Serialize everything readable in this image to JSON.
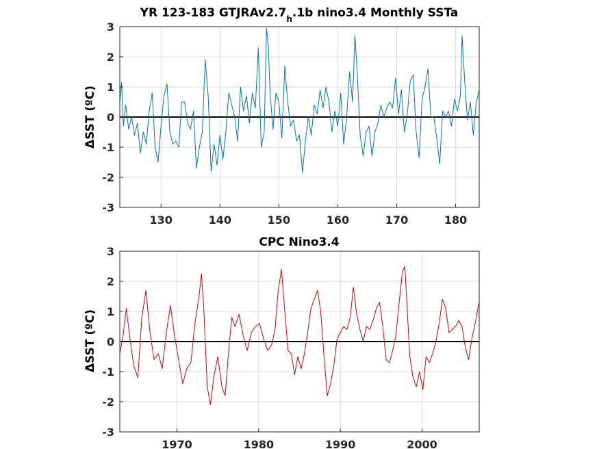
{
  "chart_data": [
    {
      "type": "line",
      "title": "YR 123-183 GTJRAv2.7",
      "title_sub": "h",
      "title_rest": ".1b nino3.4 Monthly SSTa",
      "ylabel": "ΔSST (ºC)",
      "xlim": [
        123,
        184
      ],
      "ylim": [
        -3,
        3
      ],
      "xticks": [
        130,
        140,
        150,
        160,
        170,
        180
      ],
      "yticks": [
        -3,
        -2,
        -1,
        0,
        1,
        2,
        3
      ],
      "grid": true,
      "zero_line": true,
      "color": "#0072bd",
      "series": [
        {
          "x": [
            123.0,
            123.3,
            123.6,
            124.0,
            124.5,
            125.0,
            125.5,
            126.0,
            126.5,
            127.0,
            127.5,
            128.0,
            128.5,
            129.0,
            129.5,
            130.0,
            130.5,
            131.0,
            131.5,
            132.0,
            132.5,
            133.0,
            133.5,
            134.0,
            134.5,
            135.0,
            135.5,
            136.0,
            136.5,
            137.0,
            137.5,
            138.0,
            138.5,
            139.0,
            139.5,
            140.0,
            140.5,
            141.0,
            141.5,
            142.0,
            142.5,
            143.0,
            143.5,
            144.0,
            144.5,
            145.0,
            145.5,
            146.0,
            146.5,
            147.0,
            147.5,
            147.9,
            148.2,
            148.5,
            149.0,
            149.5,
            150.0,
            150.5,
            151.0,
            151.5,
            152.0,
            152.5,
            153.0,
            153.5,
            154.0,
            154.5,
            155.0,
            155.5,
            156.0,
            156.5,
            157.0,
            157.5,
            158.0,
            158.5,
            159.0,
            159.5,
            160.0,
            160.5,
            161.0,
            161.5,
            162.0,
            162.5,
            162.9,
            163.3,
            163.8,
            164.3,
            164.8,
            165.3,
            165.8,
            166.3,
            166.8,
            167.3,
            167.8,
            168.3,
            168.8,
            169.3,
            169.8,
            170.3,
            170.8,
            171.3,
            171.8,
            172.3,
            172.8,
            173.3,
            173.8,
            174.3,
            174.8,
            175.3,
            175.8,
            176.3,
            176.8,
            177.3,
            177.8,
            178.3,
            178.8,
            179.3,
            179.8,
            180.3,
            180.8,
            181.1,
            181.5,
            182.0,
            182.5,
            183.0,
            183.5,
            184.0
          ],
          "values": [
            0.5,
            1.15,
            -0.3,
            0.4,
            -0.4,
            0.0,
            -0.6,
            -0.2,
            -1.2,
            -0.5,
            -0.9,
            0.2,
            0.8,
            -1.0,
            -1.5,
            -0.3,
            0.7,
            1.1,
            -0.5,
            -0.9,
            -0.8,
            -1.0,
            0.5,
            0.5,
            -0.2,
            -0.4,
            0.2,
            -1.7,
            -1.0,
            -0.5,
            1.9,
            0.7,
            -1.8,
            -0.9,
            -1.6,
            -0.6,
            -1.4,
            -0.5,
            0.8,
            0.4,
            0.0,
            -0.8,
            1.0,
            0.2,
            0.7,
            -0.2,
            0.8,
            0.3,
            2.3,
            -1.0,
            -0.5,
            2.95,
            2.4,
            0.8,
            -0.4,
            0.8,
            0.5,
            -0.7,
            1.7,
            0.5,
            -0.3,
            -0.1,
            -0.8,
            -0.6,
            -1.85,
            -0.8,
            0.0,
            -0.6,
            0.4,
            0.1,
            0.9,
            0.3,
            1.0,
            0.5,
            -0.5,
            0.2,
            -0.3,
            0.8,
            -0.9,
            0.0,
            1.5,
            0.5,
            2.7,
            1.5,
            -0.6,
            -1.3,
            -0.5,
            -0.3,
            -1.3,
            -0.5,
            -0.2,
            0.4,
            0.0,
            0.3,
            0.5,
            0.3,
            1.3,
            0.1,
            0.9,
            -0.5,
            0.1,
            1.2,
            1.4,
            -0.5,
            -1.35,
            0.6,
            1.0,
            1.6,
            0.0,
            0.0,
            -0.7,
            -1.55,
            0.2,
            0.0,
            0.2,
            -0.3,
            0.6,
            0.2,
            0.7,
            2.7,
            1.3,
            -0.1,
            0.5,
            -0.6,
            0.5,
            0.9
          ]
        }
      ]
    },
    {
      "type": "line",
      "title": "CPC Nino3.4",
      "ylabel": "ΔSST (ºC)",
      "xlim": [
        1963,
        2007
      ],
      "ylim": [
        -3,
        3
      ],
      "xticks": [
        1970,
        1980,
        1990,
        2000
      ],
      "yticks": [
        -3,
        -2,
        -1,
        0,
        1,
        2,
        3
      ],
      "grid": true,
      "zero_line": true,
      "color": "#d40000",
      "series": [
        {
          "x": [
            1963.0,
            1963.4,
            1963.8,
            1964.2,
            1964.7,
            1965.2,
            1965.7,
            1966.2,
            1966.7,
            1967.2,
            1967.7,
            1968.2,
            1968.7,
            1969.2,
            1969.7,
            1970.2,
            1970.7,
            1971.2,
            1971.7,
            1972.2,
            1972.7,
            1973.0,
            1973.3,
            1973.7,
            1974.1,
            1974.5,
            1975.0,
            1975.5,
            1975.9,
            1976.3,
            1976.7,
            1977.1,
            1977.6,
            1978.1,
            1978.6,
            1979.1,
            1979.6,
            1980.1,
            1980.6,
            1981.1,
            1981.6,
            1982.0,
            1982.4,
            1982.8,
            1983.2,
            1983.6,
            1984.0,
            1984.4,
            1984.8,
            1985.2,
            1985.6,
            1986.0,
            1986.4,
            1986.8,
            1987.2,
            1987.6,
            1988.0,
            1988.4,
            1988.8,
            1989.2,
            1989.6,
            1990.0,
            1990.4,
            1990.8,
            1991.2,
            1991.6,
            1992.0,
            1992.4,
            1992.8,
            1993.2,
            1993.6,
            1994.0,
            1994.4,
            1994.8,
            1995.2,
            1995.6,
            1996.0,
            1996.4,
            1996.8,
            1997.2,
            1997.6,
            1997.9,
            1998.2,
            1998.5,
            1998.9,
            1999.3,
            1999.7,
            2000.1,
            2000.5,
            2000.9,
            2001.3,
            2001.7,
            2002.1,
            2002.5,
            2002.9,
            2003.3,
            2003.7,
            2004.1,
            2004.5,
            2004.9,
            2005.3,
            2005.7,
            2006.1,
            2006.5,
            2006.9,
            2007.0
          ],
          "values": [
            -0.4,
            0.2,
            1.1,
            0.2,
            -0.8,
            -1.2,
            0.8,
            1.7,
            0.3,
            -0.6,
            -0.4,
            -0.9,
            0.3,
            1.2,
            0.2,
            -0.6,
            -1.4,
            -0.9,
            -0.7,
            0.6,
            1.5,
            2.25,
            1.0,
            -1.5,
            -2.1,
            -1.2,
            -0.5,
            -1.5,
            -1.8,
            -0.4,
            0.8,
            0.5,
            0.9,
            0.2,
            -0.3,
            0.3,
            0.5,
            0.6,
            0.1,
            -0.3,
            -0.1,
            0.4,
            1.7,
            2.4,
            1.0,
            -0.3,
            -0.4,
            -1.1,
            -0.5,
            -0.9,
            -0.4,
            0.3,
            1.1,
            1.4,
            1.7,
            1.0,
            -0.5,
            -1.8,
            -1.4,
            -0.8,
            0.1,
            0.3,
            0.5,
            0.4,
            0.8,
            1.8,
            0.9,
            0.4,
            0.0,
            0.5,
            0.4,
            0.7,
            1.1,
            1.3,
            0.5,
            -0.6,
            -0.7,
            -0.3,
            0.2,
            1.3,
            2.3,
            2.5,
            1.0,
            -0.5,
            -1.2,
            -1.5,
            -1.0,
            -1.6,
            -0.5,
            -0.7,
            -0.4,
            0.0,
            0.6,
            1.4,
            1.1,
            0.3,
            0.4,
            0.5,
            0.7,
            0.5,
            -0.2,
            -0.6,
            0.1,
            0.6,
            1.2,
            1.3
          ]
        }
      ]
    }
  ]
}
